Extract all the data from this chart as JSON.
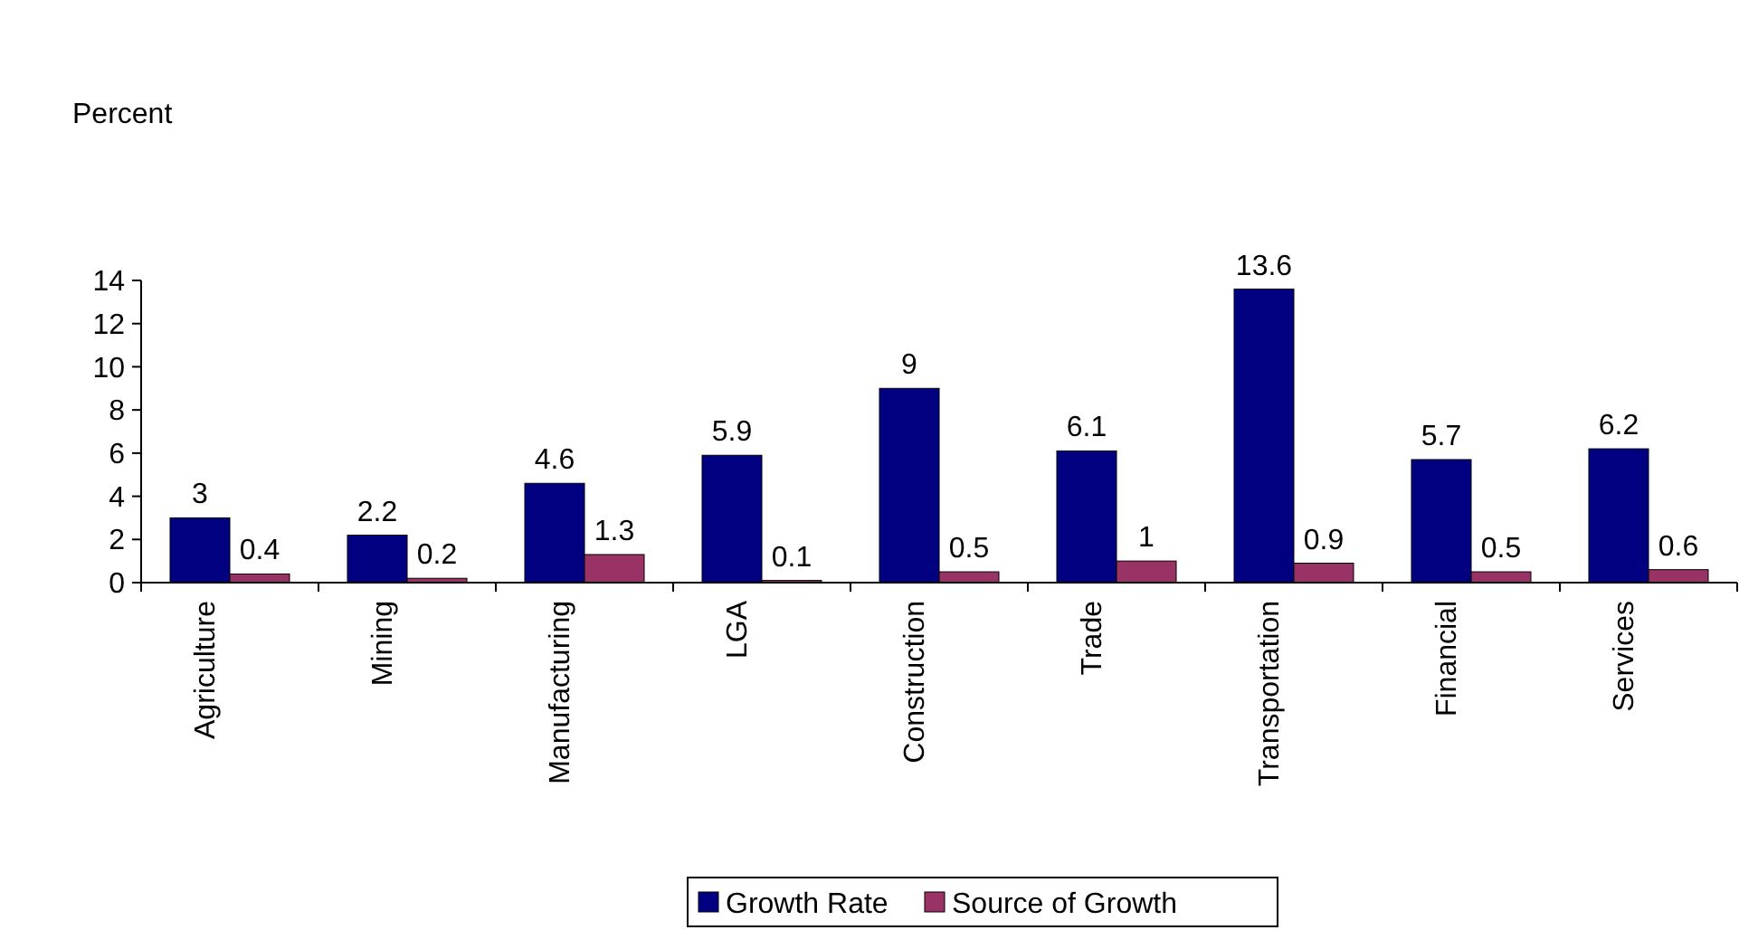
{
  "chart_data": {
    "type": "bar",
    "ylabel": "Percent",
    "categories": [
      "Agriculture",
      "Mining",
      "Manufacturing",
      "LGA",
      "Construction",
      "Trade",
      "Transportation",
      "Financial",
      "Services"
    ],
    "series": [
      {
        "name": "Growth Rate",
        "color": "#000080",
        "values": [
          3,
          2.2,
          4.6,
          5.9,
          9,
          6.1,
          13.6,
          5.7,
          6.2
        ]
      },
      {
        "name": "Source of Growth",
        "color": "#993366",
        "values": [
          0.4,
          0.2,
          1.3,
          0.1,
          0.5,
          1,
          0.9,
          0.5,
          0.6
        ]
      }
    ],
    "ylim": [
      0,
      14
    ],
    "yticks": [
      0,
      2,
      4,
      6,
      8,
      10,
      12,
      14
    ],
    "grid": false,
    "legend": "bottom",
    "data_labels": true
  }
}
